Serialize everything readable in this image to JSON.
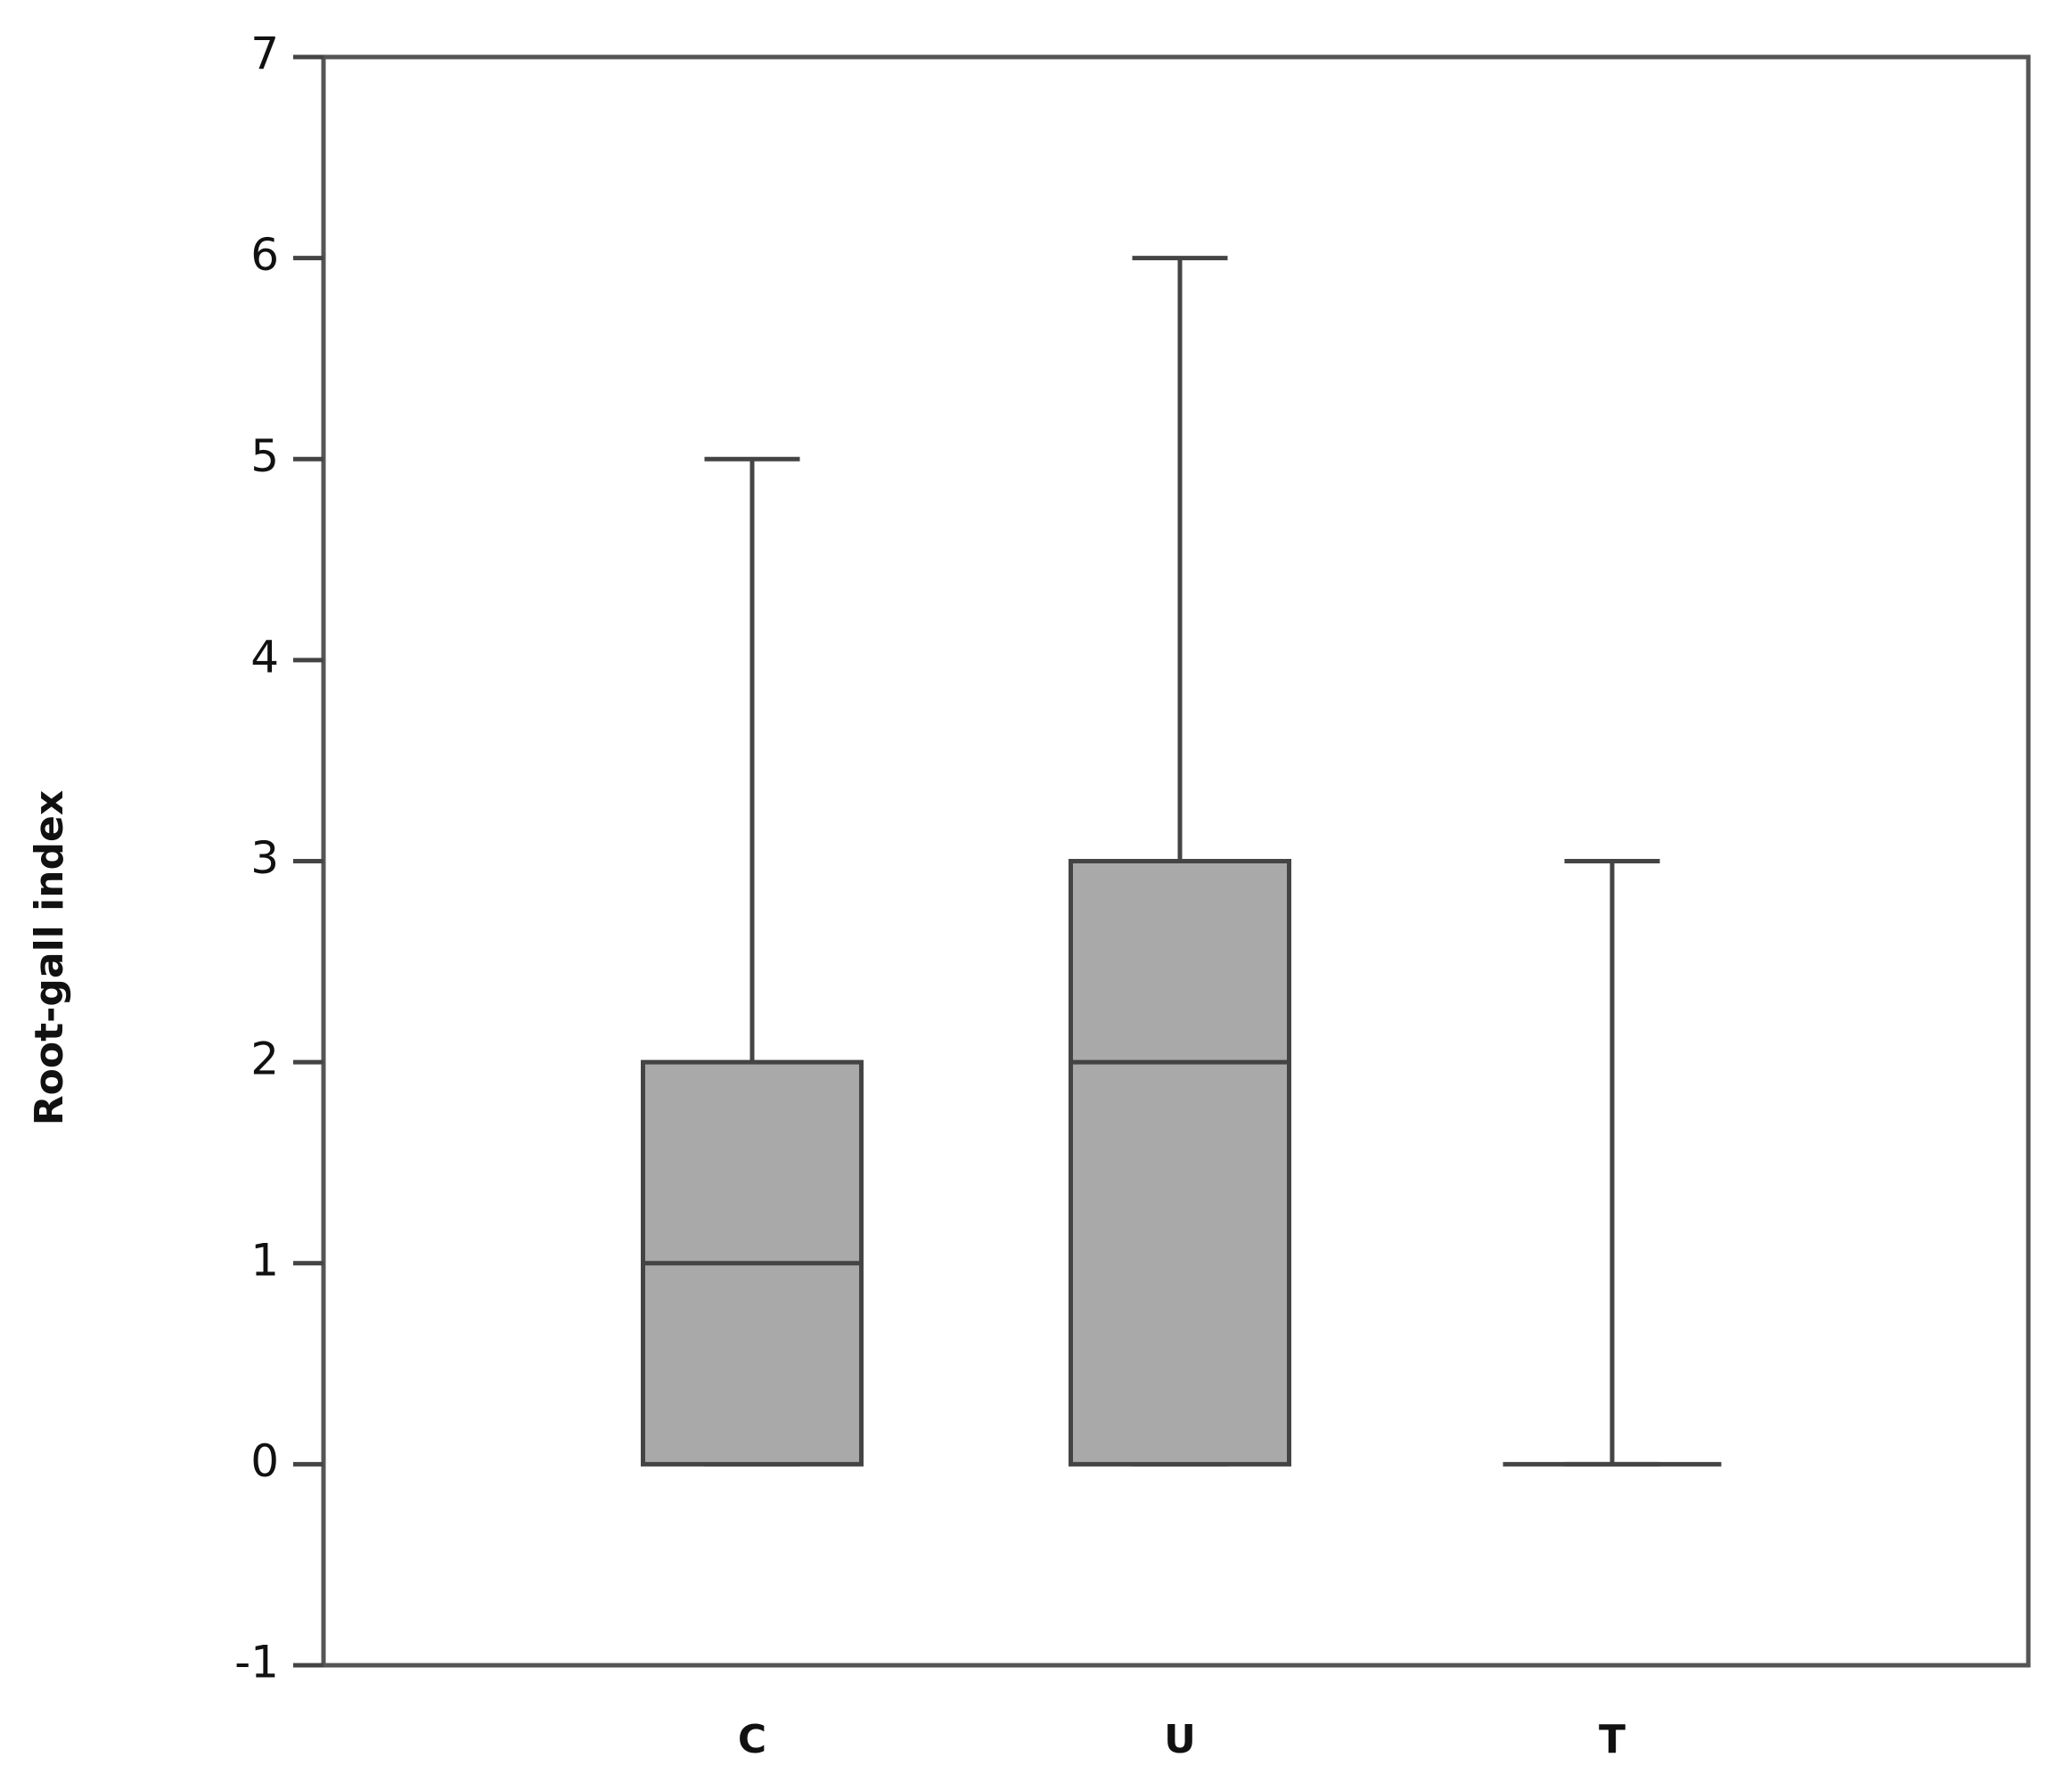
{
  "chart_data": {
    "type": "box",
    "y_label": "Root-gall index",
    "categories": [
      "C",
      "U",
      "T"
    ],
    "min": [
      0,
      0,
      0
    ],
    "q1": [
      0,
      0,
      0
    ],
    "median": [
      1,
      2,
      0
    ],
    "q3": [
      2,
      3,
      0
    ],
    "max": [
      5,
      6,
      3
    ],
    "color": "#a9a9a9",
    "ylim": [
      -1,
      7
    ],
    "yticks": [
      -1,
      0,
      1,
      2,
      3,
      4,
      5,
      6,
      7
    ]
  }
}
